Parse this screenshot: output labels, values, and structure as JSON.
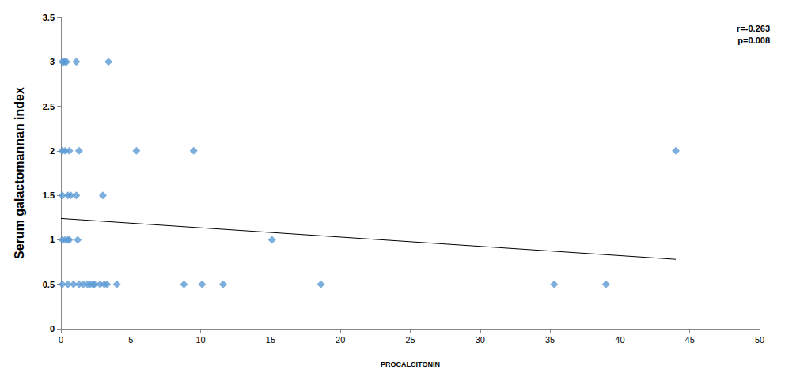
{
  "chart_data": {
    "type": "scatter",
    "x_label": "PROCALCITONIN",
    "y_label": "Serum galactomannan index",
    "x": [
      0.1,
      0.2,
      0.3,
      0.4,
      1.1,
      3.4,
      0.1,
      0.3,
      0.6,
      1.3,
      5.4,
      9.5,
      44,
      0.1,
      0.5,
      0.7,
      1.1,
      3.0,
      0.1,
      0.3,
      0.5,
      0.6,
      1.2,
      15.1,
      0.1,
      0.5,
      0.9,
      1.3,
      1.6,
      1.9,
      2.1,
      2.3,
      2.4,
      2.8,
      3.1,
      3.3,
      4.0,
      8.8,
      10.1,
      11.6,
      18.6,
      35.3,
      39.0
    ],
    "values": [
      3,
      3,
      3,
      3,
      3,
      3,
      2,
      2,
      2,
      2,
      2,
      2,
      2,
      1.5,
      1.5,
      1.5,
      1.5,
      1.5,
      1,
      1,
      1,
      1,
      1,
      1,
      0.5,
      0.5,
      0.5,
      0.5,
      0.5,
      0.5,
      0.5,
      0.5,
      0.5,
      0.5,
      0.5,
      0.5,
      0.5,
      0.5,
      0.5,
      0.5,
      0.5,
      0.5,
      0.5
    ],
    "color": "#5b9bd5",
    "marker": "diamond",
    "trendline": {
      "x": [
        0,
        44
      ],
      "values": [
        1.24,
        0.78
      ],
      "color": "#000000"
    },
    "annotations": [
      "r=-0.263",
      "p=0.008"
    ],
    "xlim": [
      0,
      50
    ],
    "xticks": [
      0,
      5,
      10,
      15,
      20,
      25,
      30,
      35,
      40,
      45,
      50
    ],
    "ylim": [
      0,
      3.5
    ],
    "yticks": [
      0,
      0.5,
      1,
      1.5,
      2,
      2.5,
      3,
      3.5
    ],
    "grid": false
  }
}
